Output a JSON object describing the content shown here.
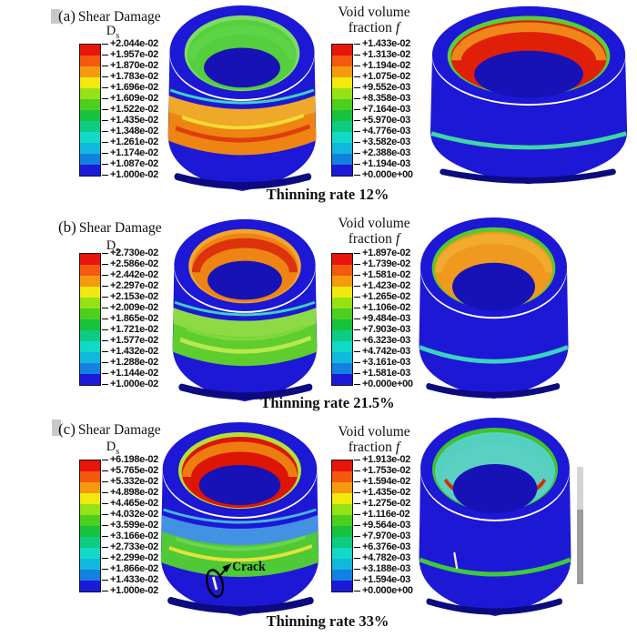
{
  "figure": {
    "background": "#ffffff",
    "colormap": [
      "#e8150c",
      "#f4590e",
      "#f59a10",
      "#f1e90f",
      "#96e214",
      "#4ccf1e",
      "#18c23c",
      "#0ecb83",
      "#12d9c6",
      "#10b9dc",
      "#1480e2",
      "#1b1ad8"
    ]
  },
  "colormap": [
    "#e8150c",
    "#f4590e",
    "#f59a10",
    "#f1e90f",
    "#96e214",
    "#4ccf1e",
    "#18c23c",
    "#0ecb83",
    "#12d9c6",
    "#10b9dc",
    "#1480e2",
    "#1b1ad8"
  ],
  "panels": [
    {
      "label": "(a)",
      "left_legend": {
        "title": "Shear Damage",
        "symbol": "D",
        "symbol_sub": "s",
        "values": [
          "+2.044e-02",
          "+1.957e-02",
          "+1.870e-02",
          "+1.783e-02",
          "+1.696e-02",
          "+1.609e-02",
          "+1.522e-02",
          "+1.435e-02",
          "+1.348e-02",
          "+1.261e-02",
          "+1.174e-02",
          "+1.087e-02",
          "+1.000e-02"
        ]
      },
      "right_legend": {
        "title_line1": "Void volume",
        "title_line2": "fraction",
        "symbol": "f",
        "values": [
          "+1.433e-02",
          "+1.313e-02",
          "+1.194e-02",
          "+1.075e-02",
          "+9.552e-03",
          "+8.358e-03",
          "+7.164e-03",
          "+5.970e-03",
          "+4.776e-03",
          "+3.582e-03",
          "+2.388e-03",
          "+1.194e-03",
          "+0.000e+00"
        ]
      },
      "caption": "Thinning rate 12%",
      "left_ring": {
        "body": "#1d17d6",
        "body_dark": "#0c0a7e",
        "hole": "#1712b6",
        "rim_line": "#3ed3be",
        "inner_top": "#7edb64",
        "inner_mid": "#5fd348",
        "inner_main": "#55cf3e",
        "band_top": "#f0a828",
        "band_main": "#ee8512",
        "band_streak": "#e03c0d",
        "band_streak2": "#f2dc3a"
      },
      "right_ring": {
        "body": "#1d17d6",
        "body_dark": "#0c0a7e",
        "hole": "#1712b6",
        "rim_edge": "#58cf36",
        "inner_top": "#f0861a",
        "inner_main": "#e01f08",
        "inner_bottom_arc": "none",
        "stripe": "#3fd6a5",
        "mark": "none"
      }
    },
    {
      "label": "(b)",
      "left_legend": {
        "title": "Shear Damage",
        "symbol": "D",
        "symbol_sub": "s",
        "values": [
          "+2.730e-02",
          "+2.586e-02",
          "+2.442e-02",
          "+2.297e-02",
          "+2.153e-02",
          "+2.009e-02",
          "+1.865e-02",
          "+1.721e-02",
          "+1.577e-02",
          "+1.432e-02",
          "+1.288e-02",
          "+1.144e-02",
          "+1.000e-02"
        ]
      },
      "right_legend": {
        "title_line1": "Void volume",
        "title_line2": "fraction",
        "symbol": "f",
        "values": [
          "+1.897e-02",
          "+1.739e-02",
          "+1.581e-02",
          "+1.423e-02",
          "+1.265e-02",
          "+1.106e-02",
          "+9.484e-03",
          "+7.903e-03",
          "+6.323e-03",
          "+4.742e-03",
          "+3.161e-03",
          "+1.581e-03",
          "+0.000e+00"
        ]
      },
      "caption": "Thinning rate 21.5%",
      "left_ring": {
        "body": "#1d17d6",
        "body_dark": "#0c0a7e",
        "hole": "#1712b6",
        "rim_line": "#3ed3be",
        "inner_top": "#f2a62c",
        "inner_mid": "#dc330c",
        "inner_main": "#ee8414",
        "band_top": "#8eda44",
        "band_main": "#5ecd2e",
        "band_streak": "#b9e84e",
        "band_streak2": "#7fd83a"
      },
      "right_ring": {
        "body": "#1d17d6",
        "body_dark": "#0c0a7e",
        "hole": "#1712b6",
        "rim_edge": "#55ca2e",
        "inner_top": "#f2ab2e",
        "inner_main": "#ef9a1f",
        "inner_bottom_arc": "none",
        "stripe": "#3cd2c0",
        "mark": "none"
      }
    },
    {
      "label": "(c)",
      "left_legend": {
        "title": "Shear Damage",
        "symbol": "D",
        "symbol_sub": "s",
        "values": [
          "+6.198e-02",
          "+5.765e-02",
          "+5.332e-02",
          "+4.898e-02",
          "+4.465e-02",
          "+4.032e-02",
          "+3.599e-02",
          "+3.166e-02",
          "+2.733e-02",
          "+2.299e-02",
          "+1.866e-02",
          "+1.433e-02",
          "+1.000e-02"
        ]
      },
      "right_legend": {
        "title_line1": "Void volume",
        "title_line2": "fraction",
        "symbol": "f",
        "values": [
          "+1.913e-02",
          "+1.753e-02",
          "+1.594e-02",
          "+1.435e-02",
          "+1.275e-02",
          "+1.116e-02",
          "+9.564e-03",
          "+7.970e-03",
          "+6.376e-03",
          "+4.782e-03",
          "+3.188e-03",
          "+1.594e-03",
          "+0.000e+00"
        ]
      },
      "caption": "Thinning rate 33%",
      "crack": {
        "label": "Crack"
      },
      "left_ring": {
        "body": "#1d17d6",
        "body_dark": "#0c0a7e",
        "hole": "#1712b6",
        "rim_line": "#45b9e0",
        "inner_top": "#b3e133",
        "inner_mid": "#ee7d10",
        "inner_main": "#dc1505",
        "band_top": "#4391e2",
        "band_main": "#4fc936",
        "band_streak": "#e3e23c",
        "band_streak2": "#6fd54a"
      },
      "right_ring": {
        "body": "#1d17d6",
        "body_dark": "#0c0a7e",
        "hole": "#1712b6",
        "rim_edge": "#3fc32c",
        "inner_top": "#54cfc0",
        "inner_main": "#5ad0c3",
        "inner_bottom_arc": "#d62d08",
        "stripe": "#3fc93a",
        "mark": "#efe9d2"
      }
    }
  ]
}
